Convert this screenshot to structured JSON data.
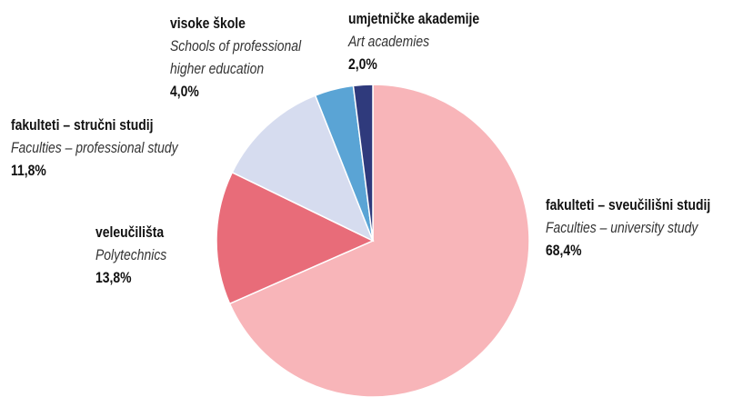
{
  "chart_data": {
    "type": "pie",
    "categories": [
      "fakulteti – sveučilišni studij",
      "veleučilišta",
      "fakulteti – stručni studij",
      "visoke škole",
      "umjetničke akademije"
    ],
    "categories_en": [
      "Faculties – university study",
      "Polytechnics",
      "Faculties – professional study",
      "Schools of professional higher education",
      "Art academies"
    ],
    "values": [
      68.4,
      13.8,
      11.8,
      4.0,
      2.0
    ],
    "value_labels": [
      "68,4%",
      "13,8%",
      "11,8%",
      "4,0%",
      "2,0%"
    ],
    "colors": [
      "#f8b5b9",
      "#e86c79",
      "#d6dcef",
      "#5aa4d5",
      "#2f3a7c"
    ]
  }
}
